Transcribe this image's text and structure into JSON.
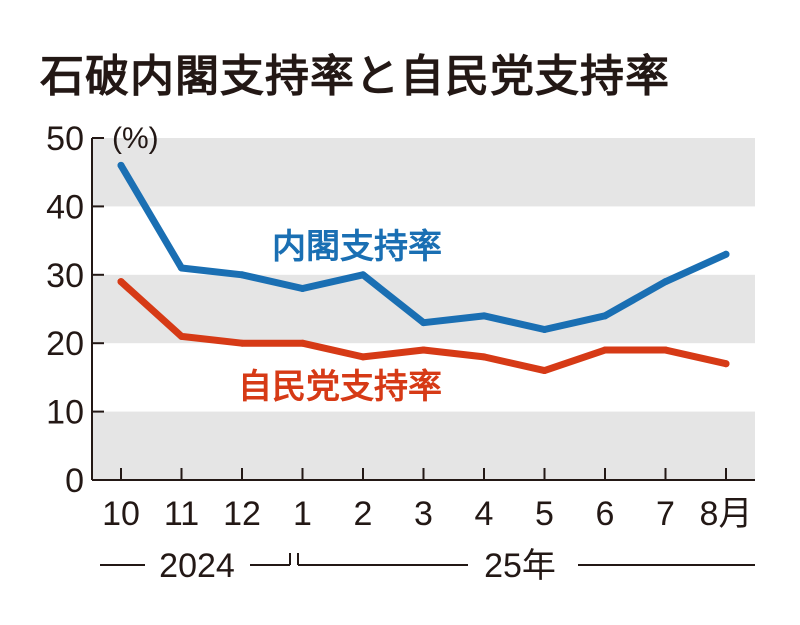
{
  "title": "石破内閣支持率と自民党支持率",
  "colors": {
    "cabinet": "#1a6fb3",
    "ldp": "#d63a16",
    "band": "#e5e5e5",
    "axis": "#231815"
  },
  "chart_data": {
    "type": "line",
    "ylabel": "(%)",
    "ylim": [
      0,
      50
    ],
    "yticks": [
      "0",
      "10",
      "20",
      "30",
      "40",
      "50"
    ],
    "categories": [
      "10",
      "11",
      "12",
      "1",
      "2",
      "3",
      "4",
      "5",
      "6",
      "7",
      "8月"
    ],
    "year_labels": [
      "2024",
      "25年"
    ],
    "series": [
      {
        "name": "内閣支持率",
        "values": [
          46,
          31,
          30,
          28,
          30,
          23,
          24,
          22,
          24,
          29,
          33
        ]
      },
      {
        "name": "自民党支持率",
        "values": [
          29,
          21,
          20,
          20,
          18,
          19,
          18,
          16,
          19,
          19,
          17
        ]
      }
    ]
  }
}
